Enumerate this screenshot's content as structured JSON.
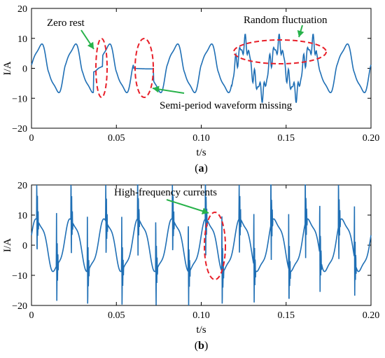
{
  "panels": [
    {
      "id": "a",
      "caption_letter": "a",
      "chart_data": {
        "type": "line",
        "xlabel": "t/s",
        "ylabel": "I/A",
        "xlim": [
          0,
          0.2
        ],
        "ylim": [
          -20,
          20
        ],
        "xticks": [
          "0",
          "0.05",
          "0.10",
          "0.15",
          "0.20"
        ],
        "yticks": [
          "20",
          "10",
          "0",
          "−10",
          "−20"
        ],
        "xtick_values": [
          0,
          0.05,
          0.1,
          0.15,
          0.2
        ],
        "ytick_values": [
          20,
          10,
          0,
          -10,
          -20
        ],
        "series_color": "#1f6fb5",
        "annotations": [
          {
            "text": "Zero rest"
          },
          {
            "text": "Random fluctuation"
          },
          {
            "text": "Semi-period waveform missing"
          }
        ]
      }
    },
    {
      "id": "b",
      "caption_letter": "b",
      "chart_data": {
        "type": "line",
        "xlabel": "t/s",
        "ylabel": "I/A",
        "xlim": [
          0,
          0.2
        ],
        "ylim": [
          -20,
          20
        ],
        "xticks": [
          "0",
          "0.05",
          "0.10",
          "0.15",
          "0.20"
        ],
        "yticks": [
          "20",
          "10",
          "0",
          "−10",
          "−20"
        ],
        "xtick_values": [
          0,
          0.05,
          0.1,
          0.15,
          0.2
        ],
        "ytick_values": [
          20,
          10,
          0,
          -10,
          -20
        ],
        "series_color": "#1f6fb5",
        "annotations": [
          {
            "text": "High-frequency currents"
          }
        ]
      }
    }
  ],
  "colors": {
    "marker_ellipse": "#e8202a",
    "arrow": "#27b24a"
  }
}
